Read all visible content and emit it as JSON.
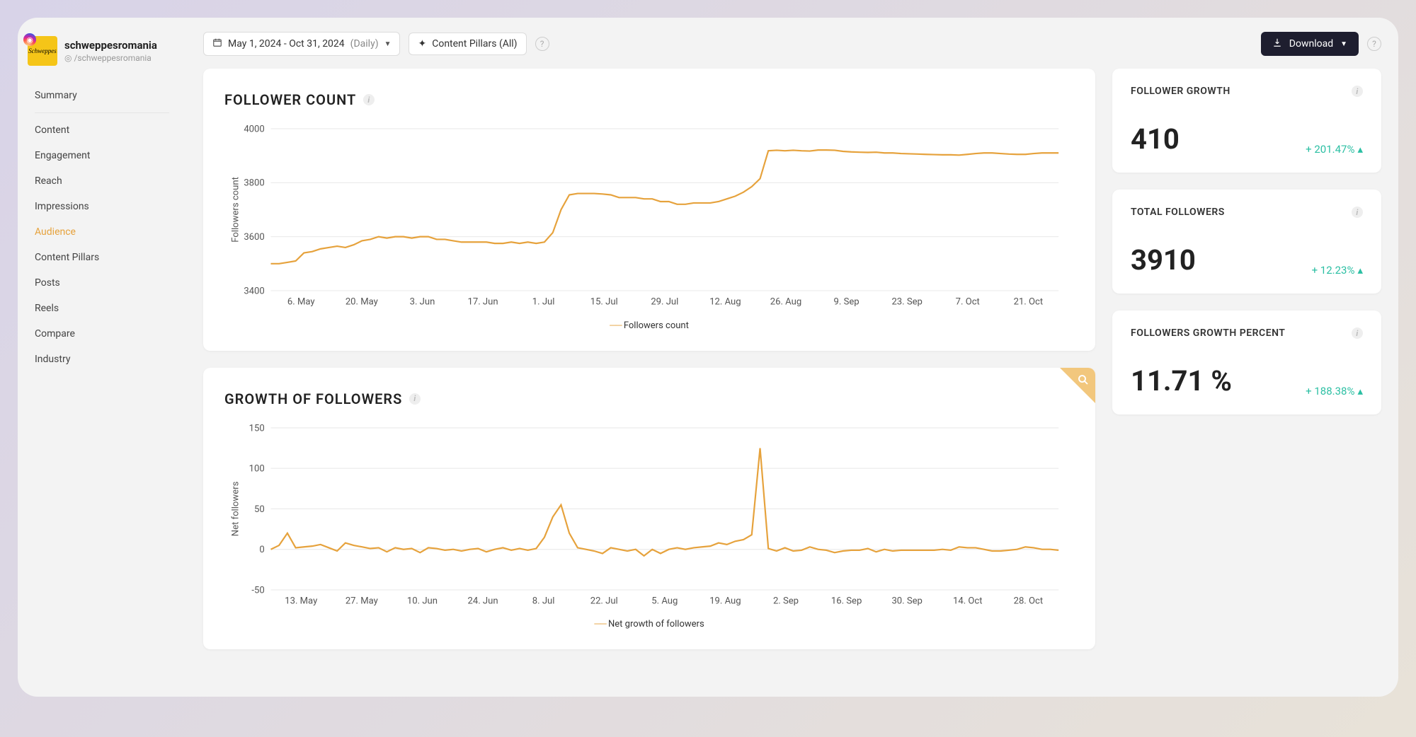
{
  "profile": {
    "name": "schweppesromania",
    "handle": "/schweppesromania",
    "handle_prefix": "◎",
    "avatar_text": "Schweppes",
    "avatar_bg": "#f5c518"
  },
  "sidebar": {
    "items": [
      {
        "label": "Summary",
        "active": false,
        "sep_after": true
      },
      {
        "label": "Content",
        "active": false
      },
      {
        "label": "Engagement",
        "active": false
      },
      {
        "label": "Reach",
        "active": false
      },
      {
        "label": "Impressions",
        "active": false
      },
      {
        "label": "Audience",
        "active": true
      },
      {
        "label": "Content Pillars",
        "active": false
      },
      {
        "label": "Posts",
        "active": false
      },
      {
        "label": "Reels",
        "active": false
      },
      {
        "label": "Compare",
        "active": false
      },
      {
        "label": "Industry",
        "active": false
      }
    ]
  },
  "topbar": {
    "date_range": "May 1, 2024 - Oct 31, 2024",
    "frequency": "(Daily)",
    "pillars_label": "Content Pillars (All)",
    "download_label": "Download"
  },
  "colors": {
    "series": "#e6a23c",
    "grid": "#eaeaea",
    "positive": "#2bbfa3",
    "card_bg": "#ffffff",
    "app_bg": "#f3f3f3"
  },
  "charts": {
    "follower_count": {
      "title": "FOLLOWER COUNT",
      "type": "line",
      "y_axis_label": "Followers count",
      "legend": "Followers count",
      "ylim": [
        3400,
        4000
      ],
      "yticks": [
        3400,
        3600,
        3800,
        4000
      ],
      "xticks": [
        "6. May",
        "20. May",
        "3. Jun",
        "17. Jun",
        "1. Jul",
        "15. Jul",
        "29. Jul",
        "12. Aug",
        "26. Aug",
        "9. Sep",
        "23. Sep",
        "7. Oct",
        "21. Oct"
      ],
      "line_color": "#e6a23c",
      "line_width": 2,
      "grid_color": "#eaeaea",
      "values": [
        3500,
        3500,
        3505,
        3510,
        3540,
        3545,
        3555,
        3560,
        3565,
        3560,
        3570,
        3585,
        3590,
        3600,
        3595,
        3600,
        3600,
        3595,
        3600,
        3600,
        3590,
        3590,
        3585,
        3580,
        3580,
        3580,
        3580,
        3575,
        3575,
        3580,
        3575,
        3580,
        3575,
        3580,
        3615,
        3700,
        3755,
        3760,
        3760,
        3760,
        3758,
        3755,
        3745,
        3745,
        3745,
        3740,
        3740,
        3730,
        3730,
        3720,
        3720,
        3725,
        3725,
        3725,
        3730,
        3740,
        3750,
        3765,
        3785,
        3815,
        3918,
        3920,
        3918,
        3920,
        3918,
        3917,
        3921,
        3921,
        3920,
        3916,
        3914,
        3913,
        3912,
        3913,
        3910,
        3910,
        3908,
        3907,
        3906,
        3905,
        3904,
        3903,
        3903,
        3902,
        3905,
        3908,
        3910,
        3910,
        3908,
        3906,
        3905,
        3905,
        3908,
        3910,
        3910,
        3910
      ]
    },
    "growth": {
      "title": "GROWTH OF FOLLOWERS",
      "type": "line",
      "y_axis_label": "Net followers",
      "legend": "Net growth of followers",
      "ylim": [
        -50,
        150
      ],
      "yticks": [
        -50,
        0,
        50,
        100,
        150
      ],
      "xticks": [
        "13. May",
        "27. May",
        "10. Jun",
        "24. Jun",
        "8. Jul",
        "22. Jul",
        "5. Aug",
        "19. Aug",
        "2. Sep",
        "16. Sep",
        "30. Sep",
        "14. Oct",
        "28. Oct"
      ],
      "line_color": "#e6a23c",
      "line_width": 2,
      "grid_color": "#eaeaea",
      "corner_badge": true,
      "values": [
        0,
        5,
        20,
        2,
        3,
        4,
        6,
        2,
        -2,
        8,
        5,
        3,
        1,
        2,
        -3,
        2,
        0,
        1,
        -4,
        2,
        1,
        -1,
        0,
        -2,
        0,
        1,
        -3,
        0,
        2,
        -1,
        1,
        -1,
        1,
        15,
        40,
        55,
        20,
        2,
        0,
        -2,
        -5,
        2,
        0,
        -2,
        0,
        -8,
        0,
        -5,
        0,
        2,
        0,
        2,
        3,
        4,
        8,
        6,
        10,
        12,
        18,
        125,
        1,
        -2,
        2,
        -2,
        -1,
        3,
        0,
        -1,
        -4,
        -2,
        -1,
        -1,
        1,
        -3,
        0,
        -2,
        -1,
        -1,
        -1,
        -1,
        -1,
        0,
        -1,
        3,
        2,
        2,
        0,
        -2,
        -2,
        -1,
        0,
        3,
        2,
        0,
        0,
        -1
      ]
    }
  },
  "stats": [
    {
      "title": "FOLLOWER GROWTH",
      "value": "410",
      "delta": "+ 201.47%"
    },
    {
      "title": "TOTAL FOLLOWERS",
      "value": "3910",
      "delta": "+ 12.23%"
    },
    {
      "title": "FOLLOWERS GROWTH PERCENT",
      "value": "11.71 %",
      "delta": "+ 188.38%"
    }
  ]
}
